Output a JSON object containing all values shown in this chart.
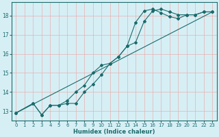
{
  "xlabel": "Humidex (Indice chaleur)",
  "bg_color": "#d6eff5",
  "grid_color": "#b8dde5",
  "line_color": "#1a6b6b",
  "xlim": [
    -0.5,
    23.5
  ],
  "ylim": [
    12.5,
    18.7
  ],
  "yticks": [
    13,
    14,
    15,
    16,
    17,
    18
  ],
  "xticks": [
    0,
    1,
    2,
    3,
    4,
    5,
    6,
    7,
    8,
    9,
    10,
    11,
    12,
    13,
    14,
    15,
    16,
    17,
    18,
    19,
    20,
    21,
    22,
    23
  ],
  "line1_x": [
    0,
    2,
    3,
    4,
    5,
    6,
    7,
    8,
    9,
    10,
    11,
    12,
    13,
    14,
    15,
    16,
    17,
    18,
    19,
    20,
    21,
    22,
    23
  ],
  "line1_y": [
    12.9,
    13.4,
    12.8,
    13.3,
    13.3,
    13.4,
    13.4,
    14.0,
    14.4,
    14.9,
    15.5,
    15.85,
    16.4,
    16.6,
    17.7,
    18.25,
    18.35,
    18.2,
    18.05,
    18.05,
    18.05,
    18.2,
    18.2
  ],
  "line2_x": [
    0,
    2,
    3,
    4,
    5,
    6,
    7,
    8,
    9,
    10,
    11,
    12,
    13,
    14,
    15,
    16,
    17,
    18,
    19,
    20,
    21,
    22,
    23
  ],
  "line2_y": [
    12.9,
    13.4,
    12.8,
    13.3,
    13.3,
    13.55,
    14.0,
    14.35,
    15.0,
    15.4,
    15.5,
    15.85,
    16.4,
    17.65,
    18.25,
    18.35,
    18.15,
    17.95,
    17.85,
    18.05,
    18.05,
    18.2,
    18.2
  ],
  "line3_x": [
    0,
    23
  ],
  "line3_y": [
    12.9,
    18.2
  ]
}
